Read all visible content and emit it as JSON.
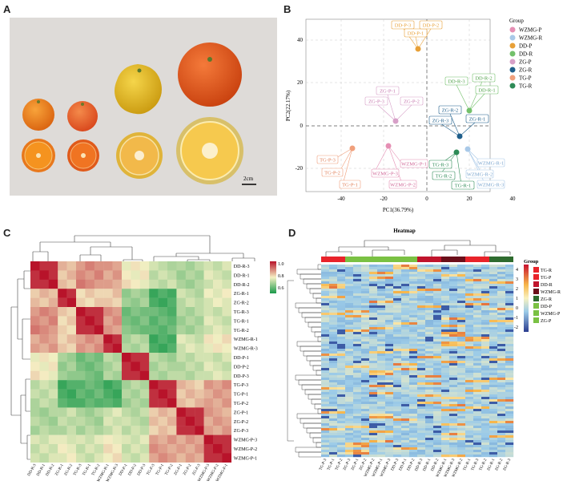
{
  "panels": {
    "a": "A",
    "b": "B",
    "c": "C",
    "d": "D"
  },
  "photo": {
    "scale_label": "2cm"
  },
  "pca": {
    "xlabel": "PC1(36.79%)",
    "ylabel": "PC2(22.17%)",
    "xticks": [
      "-40",
      "-20",
      "0",
      "20",
      "40"
    ],
    "yticks": [
      "40",
      "20",
      "0",
      "-20"
    ],
    "legend_title": "Group",
    "groups": [
      {
        "name": "WZMG-P",
        "color": "#e58fb4"
      },
      {
        "name": "WZMG-R",
        "color": "#a9c9e8"
      },
      {
        "name": "DD-P",
        "color": "#e8a037"
      },
      {
        "name": "DD-R",
        "color": "#73c06b"
      },
      {
        "name": "ZG-P",
        "color": "#d7a0c8"
      },
      {
        "name": "ZG-R",
        "color": "#1f5f8b"
      },
      {
        "name": "TG-P",
        "color": "#f0a07c"
      },
      {
        "name": "TG-R",
        "color": "#2e8b57"
      }
    ],
    "labels": [
      {
        "text": "DD-P-3",
        "color": "#e8a037"
      },
      {
        "text": "DD-P-1",
        "color": "#e8a037"
      },
      {
        "text": "DD-P-2",
        "color": "#e8a037"
      },
      {
        "text": "ZG-P-1",
        "color": "#d7a0c8"
      },
      {
        "text": "ZG-P-3",
        "color": "#d7a0c8"
      },
      {
        "text": "ZG-P-2",
        "color": "#d7a0c8"
      },
      {
        "text": "DD-R-3",
        "color": "#73c06b"
      },
      {
        "text": "DD-R-2",
        "color": "#73c06b"
      },
      {
        "text": "DD-R-1",
        "color": "#73c06b"
      },
      {
        "text": "ZG-R-2",
        "color": "#1f5f8b"
      },
      {
        "text": "ZG-R-3",
        "color": "#1f5f8b"
      },
      {
        "text": "ZG-R-1",
        "color": "#1f5f8b"
      },
      {
        "text": "TG-P-3",
        "color": "#f0a07c"
      },
      {
        "text": "TG-P-2",
        "color": "#f0a07c"
      },
      {
        "text": "TG-P-1",
        "color": "#f0a07c"
      },
      {
        "text": "WZMG-P-1",
        "color": "#e58fb4"
      },
      {
        "text": "WZMG-P-3",
        "color": "#e58fb4"
      },
      {
        "text": "WZMG-P-2",
        "color": "#e58fb4"
      },
      {
        "text": "TG-R-3",
        "color": "#2e8b57"
      },
      {
        "text": "TG-R-2",
        "color": "#2e8b57"
      },
      {
        "text": "TG-R-1",
        "color": "#2e8b57"
      },
      {
        "text": "WZMG-R-1",
        "color": "#a9c9e8"
      },
      {
        "text": "WZMG-R-2",
        "color": "#a9c9e8"
      },
      {
        "text": "WZMG-R-3",
        "color": "#a9c9e8"
      }
    ]
  },
  "corr": {
    "samples": [
      "DD-R-3",
      "DD-R-1",
      "DD-R-2",
      "ZG-R-1",
      "ZG-R-2",
      "TG-R-3",
      "TG-R-1",
      "TG-R-2",
      "WZMG-R-1",
      "WZMG-R-3",
      "DD-P-1",
      "DD-P-2",
      "DD-P-3",
      "TG-P-3",
      "TG-P-1",
      "TG-P-2",
      "ZG-P-1",
      "ZG-P-2",
      "ZG-P-3",
      "WZMG-P-3",
      "WZMG-P-2",
      "WZMG-P-1"
    ],
    "bottom_labels": [
      "DD-R-3",
      "DD-R-1",
      "DD-R-2",
      "ZG-R-1",
      "ZG-R-2",
      "TG-R-3",
      "TG-R-1",
      "TG-R-2",
      "WZMG-R-1",
      "WZMG-R-3",
      "DD-P-1",
      "DD-P-2",
      "DD-P-3",
      "TG-P-3",
      "TG-P-1",
      "TG-P-2",
      "ZG-P-1",
      "ZG-P-2",
      "ZG-P-3",
      "WZMG-P-3",
      "WZMG-P-2",
      "WZMG-P-1"
    ],
    "colorbar_ticks": [
      "1.0",
      "0.8",
      "0.6"
    ]
  },
  "heat": {
    "title": "Heatmap",
    "legend_title": "Group",
    "group_legend": [
      {
        "name": "TG-R",
        "color": "#e8232a"
      },
      {
        "name": "TG-P",
        "color": "#e8232a"
      },
      {
        "name": "DD-R",
        "color": "#c0142c"
      },
      {
        "name": "WZMG-R",
        "color": "#6b0f1a"
      },
      {
        "name": "ZG-R",
        "color": "#2e6b2e"
      },
      {
        "name": "DD-P",
        "color": "#7ac143"
      },
      {
        "name": "WZMG-P",
        "color": "#7ac143"
      },
      {
        "name": "ZG-P",
        "color": "#7ac143"
      }
    ],
    "colorbar_ticks": [
      "4",
      "3",
      "2",
      "1",
      "0",
      "-1",
      "-2"
    ],
    "columns": [
      "TG-P-3",
      "TG-P-1",
      "TG-P-2",
      "ZG-P-3",
      "ZG-P-1",
      "ZG-P-2",
      "WZMG-P-2",
      "WZMG-P-1",
      "WZMG-P-3",
      "DD-P-3",
      "DD-P-1",
      "DD-P-2",
      "DD-R-3",
      "DD-R-1",
      "DD-R-2",
      "WZMG-R-1",
      "WZMG-R-3",
      "WZMG-R-2",
      "TG-R-1",
      "TG-R-3",
      "TG-R-2",
      "ZG-R-1",
      "ZG-R-2",
      "ZG-R-3"
    ]
  }
}
